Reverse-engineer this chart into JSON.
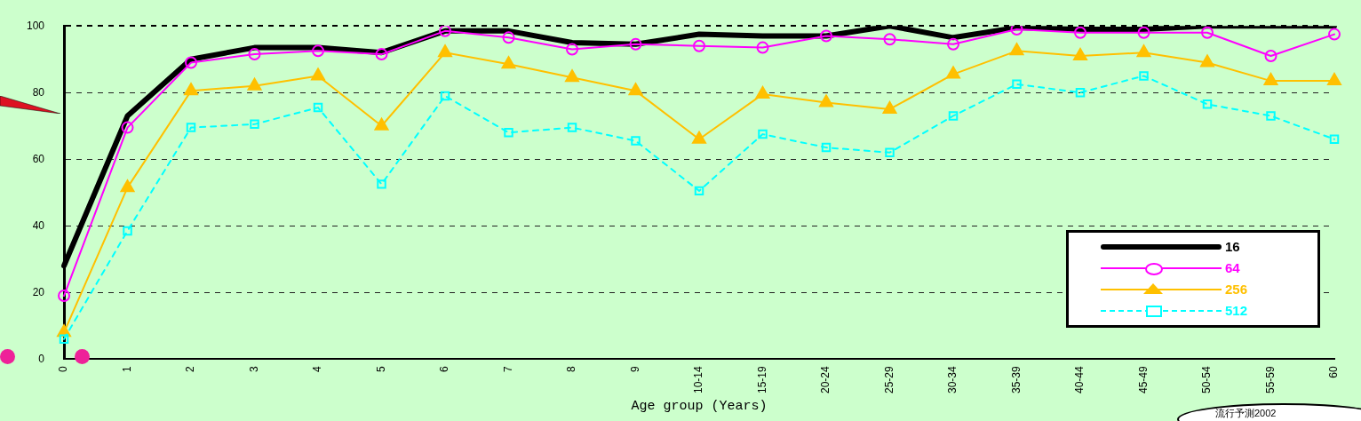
{
  "chart_data": {
    "type": "line",
    "xlabel": "Age group (Years)",
    "categories": [
      "0",
      "1",
      "2",
      "3",
      "4",
      "5",
      "6",
      "7",
      "8",
      "9",
      "10-14",
      "15-19",
      "20-24",
      "25-29",
      "30-34",
      "35-39",
      "40-44",
      "45-49",
      "50-54",
      "55-59",
      "60"
    ],
    "series": [
      {
        "name": "16",
        "color": "#000000",
        "marker": "none",
        "line_style": "solid",
        "values": [
          28,
          73,
          90,
          93.5,
          93.5,
          92,
          98.5,
          98.5,
          95,
          94.5,
          97.5,
          97,
          97,
          100,
          96.5,
          99.5,
          99,
          99,
          100,
          100,
          100
        ]
      },
      {
        "name": "64",
        "color": "#ff00ff",
        "marker": "circle",
        "line_style": "solid",
        "values": [
          19,
          69.5,
          89,
          91.5,
          92.5,
          91.5,
          98.5,
          96.5,
          93,
          94.5,
          94,
          93.5,
          97,
          96,
          94.5,
          99,
          98,
          98,
          98,
          91,
          97.5
        ]
      },
      {
        "name": "256",
        "color": "#ffc000",
        "marker": "triangle",
        "line_style": "solid",
        "values": [
          8,
          51.5,
          80.5,
          82,
          85,
          70,
          92,
          88.5,
          84.5,
          80.5,
          66,
          79.5,
          77,
          75,
          85.5,
          92.5,
          91,
          92,
          89,
          83.5,
          83.5
        ]
      },
      {
        "name": "512",
        "color": "#00ffff",
        "marker": "square",
        "line_style": "dashed",
        "values": [
          6,
          38.5,
          69.5,
          70.5,
          75.5,
          52.5,
          79,
          68,
          69.5,
          65.5,
          50.5,
          67.5,
          63.5,
          62,
          73,
          82.5,
          80,
          85,
          76.5,
          73,
          66
        ]
      }
    ],
    "ylim": [
      0,
      100
    ],
    "yticks": [
      0,
      20,
      40,
      60,
      80,
      100
    ],
    "grid": "y",
    "legend": "bottom right",
    "annotations": [
      "流行予測2002"
    ]
  }
}
